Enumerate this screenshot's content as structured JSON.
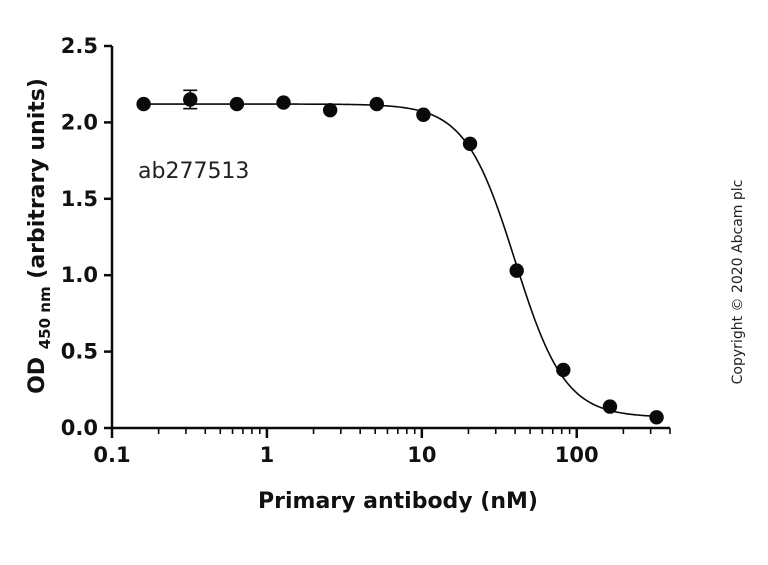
{
  "chart_data": {
    "type": "scatter",
    "xscale": "log",
    "xlim": [
      0.1,
      400
    ],
    "ylim": [
      0,
      2.5
    ],
    "xlabel": "Primary antibody (nM)",
    "ylabel": {
      "prefix": "OD",
      "subscript": "450 nm",
      "suffix": " (arbitrary units)"
    },
    "x_ticks": [
      {
        "value": 0.1,
        "label": "0.1"
      },
      {
        "value": 1,
        "label": "1"
      },
      {
        "value": 10,
        "label": "10"
      },
      {
        "value": 100,
        "label": "100"
      }
    ],
    "y_ticks": [
      {
        "value": 0,
        "label": "0.0"
      },
      {
        "value": 0.5,
        "label": "0.5"
      },
      {
        "value": 1,
        "label": "1.0"
      },
      {
        "value": 1.5,
        "label": "1.5"
      },
      {
        "value": 2,
        "label": "2.0"
      },
      {
        "value": 2.5,
        "label": "2.5"
      }
    ],
    "grid": false,
    "series": [
      {
        "points": [
          {
            "x": 0.16,
            "y": 2.12
          },
          {
            "x": 0.32,
            "y": 2.15,
            "err": 0.06
          },
          {
            "x": 0.64,
            "y": 2.12
          },
          {
            "x": 1.28,
            "y": 2.13
          },
          {
            "x": 2.56,
            "y": 2.08
          },
          {
            "x": 5.12,
            "y": 2.12
          },
          {
            "x": 10.24,
            "y": 2.05
          },
          {
            "x": 20.48,
            "y": 1.86
          },
          {
            "x": 40.96,
            "y": 1.03
          },
          {
            "x": 81.92,
            "y": 0.38
          },
          {
            "x": 163.84,
            "y": 0.14
          },
          {
            "x": 327.68,
            "y": 0.07
          }
        ],
        "fit": {
          "bottom": 0.07,
          "top": 2.12,
          "ec50": 40,
          "hill": -2.7
        }
      }
    ],
    "annotations": [
      "ab277513"
    ],
    "colors": {
      "marker": "#0a0a0a",
      "axis": "#0a0a0a"
    }
  },
  "copyright": "Copyright © 2020 Abcam plc"
}
